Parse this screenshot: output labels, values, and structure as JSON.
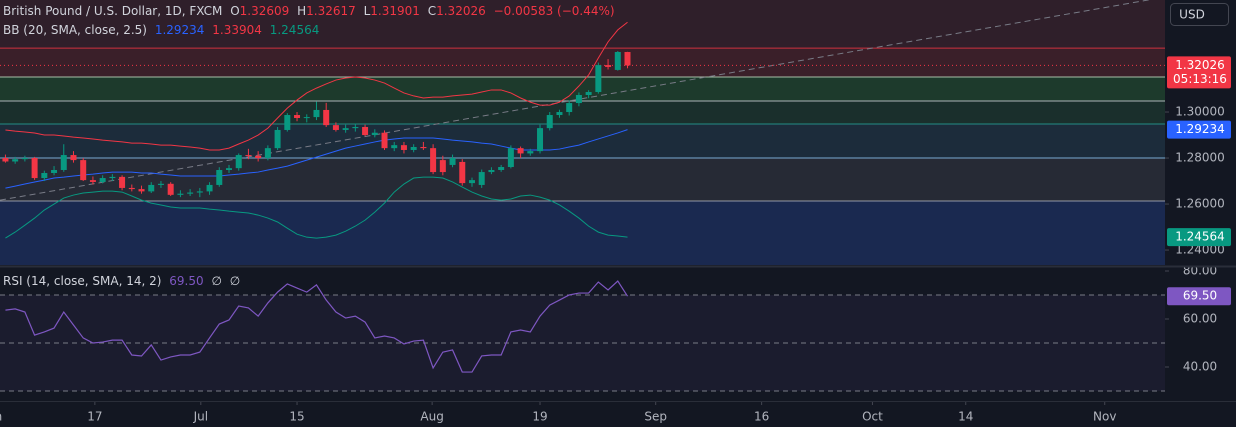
{
  "chart_data": [
    {
      "type": "candlestick",
      "title": "British Pound / U.S. Dollar, 1D, FXCM",
      "ohlc_labels": [
        "O",
        "H",
        "L",
        "C"
      ],
      "change": "−0.00583 (−0.44%)",
      "currency": "USD",
      "countdown": "05:13:16",
      "up_color": "#089981",
      "down_color": "#f23645",
      "x": [
        0,
        1,
        2,
        3,
        4,
        5,
        6,
        7,
        8,
        9,
        10,
        11,
        12,
        13,
        14,
        15,
        16,
        17,
        18,
        19,
        20,
        21,
        22,
        23,
        24,
        25,
        26,
        27,
        28,
        29,
        30,
        31,
        32,
        33,
        34,
        35,
        36,
        37,
        38,
        39,
        40,
        41,
        42,
        43,
        44,
        45,
        46,
        47,
        48,
        49,
        50,
        51,
        52,
        53,
        54,
        55,
        56,
        57,
        58,
        59,
        60,
        61,
        62,
        63,
        64
      ],
      "open": [
        1.28,
        1.2785,
        1.2795,
        1.28,
        1.2713,
        1.2735,
        1.2748,
        1.2813,
        1.2791,
        1.2704,
        1.2696,
        1.2713,
        1.2718,
        1.267,
        1.2665,
        1.2655,
        1.2683,
        1.2688,
        1.264,
        1.2645,
        1.265,
        1.2655,
        1.2683,
        1.2748,
        1.2756,
        1.2813,
        1.281,
        1.28,
        1.2843,
        1.2922,
        1.2987,
        1.2974,
        1.2978,
        1.3009,
        1.2943,
        1.2922,
        1.293,
        1.2935,
        1.29,
        1.291,
        1.2843,
        1.2856,
        1.2835,
        1.2848,
        1.2843,
        1.2791,
        1.277,
        1.2783,
        1.2691,
        1.2683,
        1.2739,
        1.2748,
        1.2761,
        1.2843,
        1.282,
        1.283,
        1.293,
        1.2987,
        1.3,
        1.3039,
        1.3074,
        1.3087,
        1.3204,
        1.3183,
        1.32609
      ],
      "high": [
        1.2815,
        1.2805,
        1.281,
        1.2805,
        1.2745,
        1.2765,
        1.286,
        1.283,
        1.28,
        1.272,
        1.2725,
        1.273,
        1.2725,
        1.2685,
        1.268,
        1.2695,
        1.27,
        1.2695,
        1.266,
        1.2665,
        1.267,
        1.2695,
        1.276,
        1.277,
        1.282,
        1.284,
        1.283,
        1.2855,
        1.2935,
        1.2995,
        1.3,
        1.299,
        1.3045,
        1.304,
        1.2955,
        1.2945,
        1.295,
        1.2945,
        1.2925,
        1.292,
        1.287,
        1.287,
        1.286,
        1.287,
        1.286,
        1.281,
        1.2815,
        1.2795,
        1.2715,
        1.275,
        1.276,
        1.277,
        1.2855,
        1.285,
        1.284,
        1.2945,
        1.3,
        1.301,
        1.305,
        1.3085,
        1.3095,
        1.3215,
        1.323,
        1.3265,
        1.32617
      ],
      "low": [
        1.278,
        1.2775,
        1.2785,
        1.2705,
        1.27,
        1.2725,
        1.274,
        1.278,
        1.27,
        1.2685,
        1.269,
        1.27,
        1.266,
        1.2655,
        1.2645,
        1.2648,
        1.267,
        1.2635,
        1.263,
        1.2635,
        1.263,
        1.264,
        1.2675,
        1.2735,
        1.2745,
        1.2795,
        1.2785,
        1.279,
        1.2835,
        1.2915,
        1.296,
        1.2955,
        1.2965,
        1.2935,
        1.2915,
        1.291,
        1.2915,
        1.2895,
        1.289,
        1.2835,
        1.283,
        1.282,
        1.2825,
        1.2835,
        1.273,
        1.2725,
        1.276,
        1.268,
        1.2675,
        1.267,
        1.273,
        1.274,
        1.2755,
        1.28,
        1.281,
        1.282,
        1.292,
        1.2975,
        1.2985,
        1.3025,
        1.306,
        1.308,
        1.3185,
        1.318,
        1.31901
      ],
      "close": [
        1.2785,
        1.2795,
        1.28,
        1.2713,
        1.2735,
        1.2748,
        1.2813,
        1.2791,
        1.2704,
        1.2696,
        1.2713,
        1.2718,
        1.267,
        1.2665,
        1.2655,
        1.2683,
        1.2688,
        1.264,
        1.2645,
        1.265,
        1.2655,
        1.2683,
        1.2748,
        1.2756,
        1.2813,
        1.281,
        1.28,
        1.2843,
        1.2922,
        1.2987,
        1.2974,
        1.2978,
        1.3009,
        1.2943,
        1.2922,
        1.293,
        1.2935,
        1.29,
        1.291,
        1.2843,
        1.2856,
        1.2835,
        1.2848,
        1.2843,
        1.2739,
        1.2739,
        1.28,
        1.2691,
        1.2704,
        1.2739,
        1.2748,
        1.2761,
        1.2843,
        1.282,
        1.283,
        1.293,
        1.2987,
        1.3,
        1.3039,
        1.3074,
        1.3087,
        1.3204,
        1.3196,
        1.3261,
        1.32026
      ],
      "indicator": {
        "title": "BB (20, SMA, close, 2.5)",
        "lines": [
          {
            "color": "#2962ff",
            "axis_label": true,
            "values": [
              1.2669,
              1.2678,
              1.2687,
              1.2696,
              1.2704,
              1.2713,
              1.2717,
              1.2722,
              1.2726,
              1.273,
              1.2735,
              1.2739,
              1.2739,
              1.2739,
              1.2735,
              1.2735,
              1.273,
              1.2726,
              1.2722,
              1.2722,
              1.2722,
              1.2722,
              1.2722,
              1.2726,
              1.273,
              1.2735,
              1.2739,
              1.2748,
              1.2756,
              1.2765,
              1.2778,
              1.2791,
              1.2804,
              1.2817,
              1.283,
              1.2843,
              1.2852,
              1.2861,
              1.287,
              1.2878,
              1.2883,
              1.2887,
              1.2887,
              1.2887,
              1.2887,
              1.2883,
              1.2878,
              1.2874,
              1.287,
              1.2865,
              1.2861,
              1.2852,
              1.2843,
              1.2835,
              1.2835,
              1.2835,
              1.2835,
              1.2839,
              1.2848,
              1.2856,
              1.287,
              1.2883,
              1.2896,
              1.2909,
              1.29234
            ]
          },
          {
            "color": "#f23645",
            "axis_label": false,
            "values": [
              1.2922,
              1.2917,
              1.2913,
              1.2909,
              1.29,
              1.29,
              1.2896,
              1.2891,
              1.2887,
              1.2883,
              1.2878,
              1.2874,
              1.287,
              1.2865,
              1.2865,
              1.2861,
              1.2856,
              1.2856,
              1.2852,
              1.2848,
              1.2843,
              1.2835,
              1.2835,
              1.2843,
              1.2861,
              1.2878,
              1.29,
              1.293,
              1.2974,
              1.3017,
              1.3052,
              1.3083,
              1.3104,
              1.3122,
              1.3139,
              1.3148,
              1.3152,
              1.3148,
              1.3139,
              1.3126,
              1.3104,
              1.3083,
              1.307,
              1.3061,
              1.3065,
              1.3065,
              1.307,
              1.3074,
              1.3078,
              1.3087,
              1.3096,
              1.3096,
              1.3083,
              1.3061,
              1.3043,
              1.303,
              1.303,
              1.3043,
              1.307,
              1.3113,
              1.3161,
              1.3235,
              1.3305,
              1.3357,
              1.33904
            ]
          },
          {
            "color": "#089981",
            "axis_label": true,
            "values": [
              1.2452,
              1.2478,
              1.2508,
              1.2539,
              1.2574,
              1.26,
              1.2626,
              1.2639,
              1.2648,
              1.2652,
              1.2656,
              1.2656,
              1.2652,
              1.2635,
              1.2617,
              1.2604,
              1.2596,
              1.2587,
              1.2583,
              1.2583,
              1.2583,
              1.2578,
              1.2574,
              1.2569,
              1.2565,
              1.2561,
              1.2552,
              1.2539,
              1.2522,
              1.2495,
              1.2469,
              1.2456,
              1.2452,
              1.2456,
              1.2465,
              1.2482,
              1.2504,
              1.253,
              1.2565,
              1.2604,
              1.2652,
              1.2687,
              1.2713,
              1.2717,
              1.2717,
              1.2713,
              1.2696,
              1.2674,
              1.2652,
              1.2635,
              1.2622,
              1.2617,
              1.2622,
              1.2635,
              1.2639,
              1.263,
              1.2617,
              1.2596,
              1.2569,
              1.2539,
              1.2504,
              1.2478,
              1.2465,
              1.2461,
              1.24564
            ]
          }
        ]
      },
      "levels": [
        1.3278,
        1.3152,
        1.3048,
        1.2948,
        1.28,
        1.2613
      ],
      "level_colors": [
        "#f23645",
        "#c8e6c9",
        "#d1d4dc",
        "#26a69a",
        "#90caf9",
        "#b2b5be"
      ],
      "zone_colors": [
        "#2f1f2a",
        "#3a1f29",
        "#1d3a2c",
        "#1a2f2c",
        "#1c2c3b",
        "#262a35",
        "#1a2950"
      ],
      "trendline": {
        "x": [
          -0.56,
          118.8
        ],
        "y": [
          1.2617,
          1.3496
        ]
      },
      "xlim": [
        -0.56,
        119.3
      ],
      "xticks": [
        {
          "value": -1.3,
          "label": "Jun"
        },
        {
          "value": 9.2,
          "label": "17"
        },
        {
          "value": 20.1,
          "label": "Jul"
        },
        {
          "value": 30,
          "label": "15"
        },
        {
          "value": 43.9,
          "label": "Aug"
        },
        {
          "value": 55,
          "label": "19"
        },
        {
          "value": 66.9,
          "label": "Sep"
        },
        {
          "value": 77.8,
          "label": "16"
        },
        {
          "value": 89.2,
          "label": "Oct"
        },
        {
          "value": 98.8,
          "label": "14"
        },
        {
          "value": 113.1,
          "label": "Nov"
        }
      ],
      "ylim": [
        1.2335,
        1.3487
      ],
      "yticks": [
        {
          "value": 1.24,
          "label": "1.24000"
        },
        {
          "value": 1.26,
          "label": "1.26000"
        },
        {
          "value": 1.28,
          "label": "1.28000"
        },
        {
          "value": 1.3,
          "label": "1.30000"
        }
      ]
    },
    {
      "type": "line",
      "title": "RSI (14, close, SMA, 14, 2)",
      "color": "#7e57c2",
      "last_label": "69.50",
      "extras": [
        "∅",
        "∅"
      ],
      "x": [
        0,
        1,
        2,
        3,
        4,
        5,
        6,
        7,
        8,
        9,
        10,
        11,
        12,
        13,
        14,
        15,
        16,
        17,
        18,
        19,
        20,
        21,
        22,
        23,
        24,
        25,
        26,
        27,
        28,
        29,
        30,
        31,
        32,
        33,
        34,
        35,
        36,
        37,
        38,
        39,
        40,
        41,
        42,
        43,
        44,
        45,
        46,
        47,
        48,
        49,
        50,
        51,
        52,
        53,
        54,
        55,
        56,
        57,
        58,
        59,
        60,
        61,
        62,
        63,
        64
      ],
      "values": [
        63.7,
        64.2,
        62.9,
        53.3,
        54.6,
        56.2,
        62.9,
        57.5,
        52.1,
        50.0,
        50.4,
        51.2,
        51.2,
        45.0,
        44.6,
        49.2,
        42.9,
        44.2,
        45.0,
        45.0,
        46.2,
        52.1,
        57.9,
        59.6,
        65.4,
        64.6,
        61.2,
        66.7,
        71.2,
        74.6,
        72.9,
        71.2,
        74.2,
        67.9,
        62.9,
        60.4,
        61.2,
        58.7,
        52.1,
        52.9,
        52.1,
        49.6,
        50.8,
        51.2,
        39.6,
        46.2,
        47.1,
        37.9,
        37.9,
        44.6,
        45.0,
        45.0,
        54.6,
        55.4,
        54.6,
        61.2,
        65.8,
        67.9,
        70.0,
        70.8,
        70.8,
        75.4,
        72.1,
        75.8,
        69.5
      ],
      "levels": [
        70,
        50,
        30
      ],
      "ylim": [
        26.25,
        81.25
      ],
      "yticks": [
        {
          "value": 40,
          "label": "40.00"
        },
        {
          "value": 60,
          "label": "60.00"
        },
        {
          "value": 80,
          "label": "80.00"
        }
      ]
    }
  ]
}
